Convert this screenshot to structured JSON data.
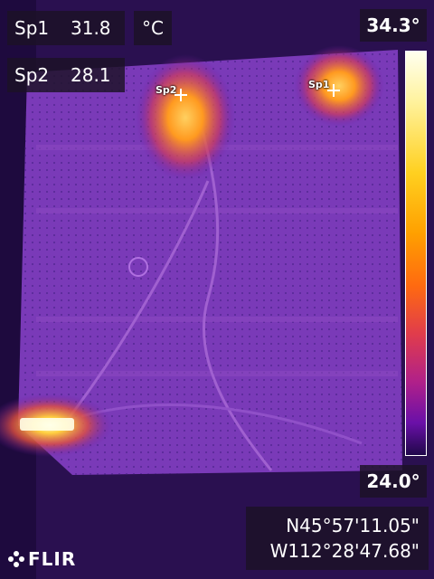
{
  "measurements": [
    {
      "label": "Sp1",
      "value": "31.8"
    },
    {
      "label": "Sp2",
      "value": "28.1"
    }
  ],
  "unit": "°C",
  "scale": {
    "max": "34.3°",
    "min": "24.0°"
  },
  "spots": [
    {
      "label": "Sp2"
    },
    {
      "label": "Sp1"
    }
  ],
  "gps": {
    "lat": "N45°57'11.05\"",
    "lon": "W112°28'47.68\""
  },
  "brand": {
    "name": "FLIR"
  },
  "palette": {
    "hot": "#ffffe0",
    "warm": "#ffa000",
    "mid": "#d03c5c",
    "cool": "#6a18a8",
    "cold": "#2a1050"
  }
}
